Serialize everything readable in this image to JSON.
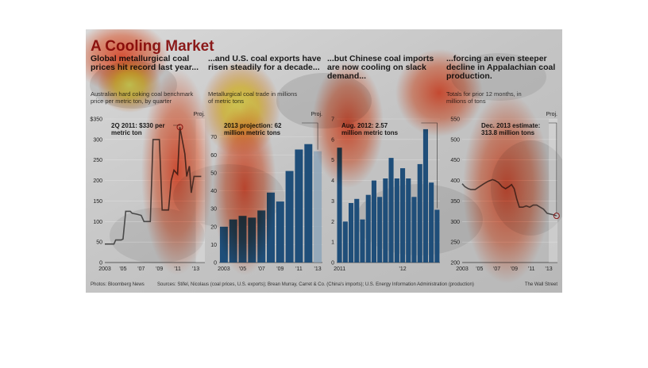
{
  "title": "A Cooling Market",
  "footer": {
    "photos": "Photos: Bloomberg News",
    "sources": "Sources: Stifel, Nicolaus (coal prices, U.S. exports); Brean Murray, Carret & Co. (China's imports); U.S. Energy Information Administration (production)",
    "brand": "The Wall Street"
  },
  "colors": {
    "title": "#8b1a1a",
    "bar": "#1f4e79",
    "line": "#555555",
    "callout": "#8b1a1a"
  },
  "chart_data": [
    {
      "type": "line",
      "headline": "Global metallurgical coal prices hit record last year...",
      "subtitle": "Australian hard coking coal benchmark price per metric ton, by quarter",
      "proj_label": "Proj.",
      "annotation": "2Q 2011: $330 per metric ton",
      "xlim": [
        2003,
        2014
      ],
      "ylim": [
        0,
        350
      ],
      "yticks": [
        0,
        50,
        100,
        150,
        200,
        250,
        300,
        350
      ],
      "ytick_labels": [
        "0",
        "50",
        "100",
        "150",
        "200",
        "250",
        "300",
        "$350"
      ],
      "xticks": [
        2003,
        2005,
        2007,
        2009,
        2011,
        2013
      ],
      "xtick_labels": [
        "2003",
        "'05",
        "'07",
        "'09",
        "'11",
        "'13"
      ],
      "x": [
        2003.0,
        2003.5,
        2004.0,
        2004.2,
        2004.5,
        2004.8,
        2005.0,
        2005.3,
        2005.5,
        2005.8,
        2006.0,
        2006.5,
        2007.0,
        2007.3,
        2007.6,
        2008.0,
        2008.3,
        2008.6,
        2009.0,
        2009.3,
        2009.6,
        2010.0,
        2010.3,
        2010.6,
        2011.0,
        2011.25,
        2011.5,
        2011.8,
        2012.0,
        2012.3,
        2012.5,
        2012.8,
        2013.0,
        2013.3,
        2013.6
      ],
      "y": [
        45,
        45,
        45,
        55,
        55,
        55,
        57,
        125,
        125,
        125,
        120,
        118,
        115,
        100,
        100,
        100,
        300,
        300,
        300,
        128,
        128,
        128,
        200,
        225,
        215,
        330,
        300,
        265,
        210,
        235,
        170,
        210,
        210,
        210,
        210
      ]
    },
    {
      "type": "bar",
      "headline": "...and U.S. coal exports have risen steadily for a decade...",
      "subtitle": "Metallurgical coal trade in millions of metric tons",
      "proj_label": "Proj.",
      "annotation": "2013 projection: 62 million metric tons",
      "categories": [
        "2003",
        "2004",
        "2005",
        "2006",
        "2007",
        "2008",
        "2009",
        "2010",
        "2011",
        "2012",
        "2013"
      ],
      "values": [
        20,
        24,
        26,
        25,
        29,
        39,
        34,
        51,
        63,
        66,
        62
      ],
      "projected_index": 10,
      "ylim": [
        0,
        80
      ],
      "yticks": [
        0,
        10,
        20,
        30,
        40,
        50,
        60,
        70
      ],
      "xtick_labels": [
        "2003",
        "'05",
        "'07",
        "'09",
        "'11",
        "'13"
      ],
      "xtick_index": [
        0,
        2,
        4,
        6,
        8,
        10
      ]
    },
    {
      "type": "bar",
      "headline": "...but Chinese coal imports are now cooling on slack demand...",
      "annotation": "Aug. 2012: 2.57 million metric tons",
      "values": [
        5.6,
        2.0,
        2.9,
        3.1,
        2.1,
        3.3,
        4.0,
        3.2,
        4.1,
        5.1,
        4.1,
        4.6,
        4.1,
        3.2,
        4.8,
        6.5,
        3.9,
        2.57
      ],
      "ylim": [
        0,
        7
      ],
      "yticks": [
        0,
        1,
        2,
        3,
        4,
        5,
        6,
        7
      ],
      "xtick_labels": [
        "2011",
        "'12"
      ],
      "xtick_index": [
        0,
        11
      ]
    },
    {
      "type": "line",
      "headline": "...forcing an even steeper decline in Appalachian coal production.",
      "subtitle": "Totals for prior 12 months, in millions of tons",
      "proj_label": "Proj.",
      "annotation": "Dec. 2013 estimate: 313.8 million tons",
      "xlim": [
        2003,
        2014
      ],
      "ylim": [
        200,
        550
      ],
      "yticks": [
        200,
        250,
        300,
        350,
        400,
        450,
        500,
        550
      ],
      "xticks": [
        2003,
        2005,
        2007,
        2009,
        2011,
        2013
      ],
      "xtick_labels": [
        "2003",
        "'05",
        "'07",
        "'09",
        "'11",
        "'13"
      ],
      "x": [
        2003.0,
        2003.3,
        2003.7,
        2004.0,
        2004.5,
        2005.0,
        2005.5,
        2006.0,
        2006.5,
        2006.8,
        2007.2,
        2007.6,
        2008.0,
        2008.4,
        2008.7,
        2009.0,
        2009.3,
        2009.6,
        2010.0,
        2010.4,
        2010.8,
        2011.2,
        2011.6,
        2012.0,
        2012.4,
        2012.8,
        2013.2,
        2013.6,
        2013.9
      ],
      "y": [
        392,
        385,
        380,
        378,
        378,
        385,
        392,
        398,
        402,
        400,
        395,
        385,
        380,
        385,
        390,
        380,
        355,
        335,
        335,
        338,
        335,
        340,
        340,
        335,
        330,
        320,
        318,
        316,
        313.8
      ]
    }
  ]
}
